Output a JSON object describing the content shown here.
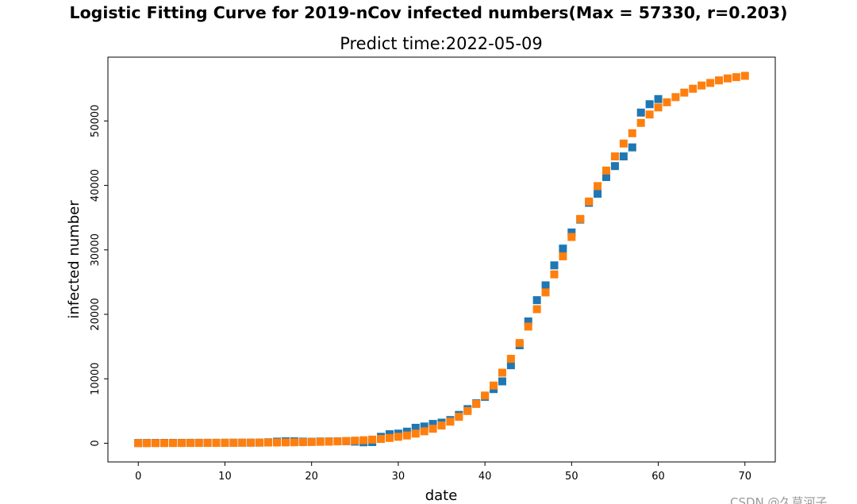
{
  "suptitle": "Logistic Fitting Curve for 2019-nCov infected numbers(Max = 57330,  r=0.203)",
  "watermark": "CSDN @久草河子",
  "chart_data": {
    "type": "scatter",
    "title": "Predict time:2022-05-09",
    "xlabel": "date",
    "ylabel": "infected number",
    "xlim": [
      -3.5,
      73.5
    ],
    "ylim": [
      -2900,
      59900
    ],
    "xticks": [
      0,
      10,
      20,
      30,
      40,
      50,
      60,
      70
    ],
    "yticks": [
      0,
      10000,
      20000,
      30000,
      40000,
      50000
    ],
    "grid": false,
    "marker": "square",
    "series": [
      {
        "color": "#1f77b4",
        "x": [
          0,
          1,
          2,
          3,
          4,
          5,
          6,
          7,
          8,
          9,
          10,
          11,
          12,
          13,
          14,
          15,
          16,
          17,
          18,
          19,
          20,
          21,
          22,
          23,
          24,
          25,
          26,
          27,
          28,
          29,
          30,
          31,
          32,
          33,
          34,
          35,
          36,
          37,
          38,
          39,
          40,
          41,
          42,
          43,
          44,
          45,
          46,
          47,
          48,
          49,
          50,
          51,
          52,
          53,
          54,
          55,
          56,
          57,
          58,
          59,
          60
        ],
        "y": [
          40,
          45,
          50,
          55,
          60,
          60,
          65,
          70,
          70,
          75,
          80,
          85,
          90,
          95,
          100,
          150,
          250,
          300,
          300,
          250,
          230,
          270,
          280,
          300,
          320,
          250,
          150,
          180,
          1000,
          1400,
          1500,
          1800,
          2400,
          2600,
          3000,
          3200,
          3600,
          4400,
          5300,
          6200,
          7200,
          8400,
          9600,
          12100,
          15200,
          18900,
          22200,
          24500,
          27600,
          30200,
          32700,
          34700,
          37300,
          38700,
          41300,
          43000,
          44500,
          45900,
          51300,
          52600,
          53400
        ]
      },
      {
        "color": "#ff7f0e",
        "x": [
          0,
          1,
          2,
          3,
          4,
          5,
          6,
          7,
          8,
          9,
          10,
          11,
          12,
          13,
          14,
          15,
          16,
          17,
          18,
          19,
          20,
          21,
          22,
          23,
          24,
          25,
          26,
          27,
          28,
          29,
          30,
          31,
          32,
          33,
          34,
          35,
          36,
          37,
          38,
          39,
          40,
          41,
          42,
          43,
          44,
          45,
          46,
          47,
          48,
          49,
          50,
          51,
          52,
          53,
          54,
          55,
          56,
          57,
          58,
          59,
          60,
          61,
          62,
          63,
          64,
          65,
          66,
          67,
          68,
          69,
          70
        ],
        "y": [
          10,
          15,
          20,
          25,
          30,
          35,
          40,
          45,
          50,
          55,
          60,
          70,
          80,
          90,
          100,
          110,
          120,
          130,
          150,
          170,
          190,
          220,
          250,
          290,
          340,
          400,
          470,
          560,
          670,
          820,
          1000,
          1200,
          1500,
          1850,
          2250,
          2750,
          3350,
          4100,
          5000,
          6100,
          7400,
          8950,
          10950,
          13100,
          15550,
          18100,
          20800,
          23400,
          26200,
          29000,
          32000,
          34800,
          37500,
          39900,
          42300,
          44500,
          46500,
          48100,
          49700,
          51000,
          52100,
          52900,
          53700,
          54400,
          55000,
          55500,
          55900,
          56300,
          56600,
          56800,
          57000
        ]
      }
    ]
  }
}
